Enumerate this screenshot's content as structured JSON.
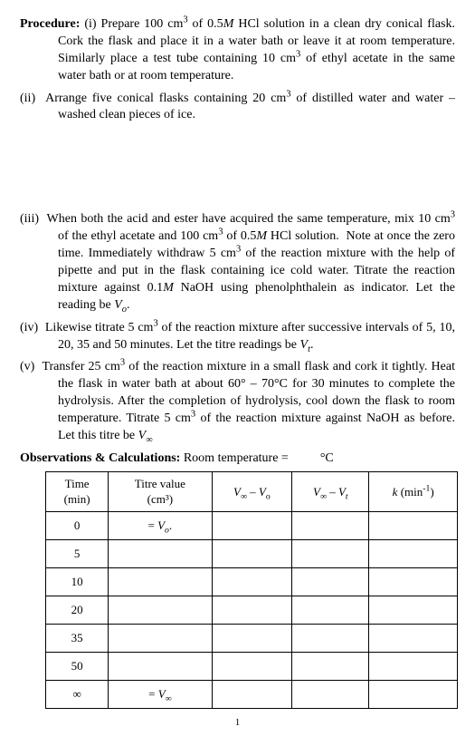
{
  "procedure": {
    "label": "Procedure:",
    "items": [
      {
        "num": "(i)",
        "text": "Prepare 100 cm³ of 0.5M HCl solution in a clean dry conical flask. Cork the flask and place it in a water bath or leave it at room temperature. Similarly place a test tube containing 10 cm³ of ethyl acetate in the same water bath or at room temperature."
      },
      {
        "num": "(ii)",
        "text": "Arrange five conical flasks containing 20 cm³ of distilled water and water –washed clean pieces of ice."
      },
      {
        "num": "(iii)",
        "text": "When both the acid and ester have acquired the same temperature, mix 10 cm³ of the ethyl acetate and 100 cm³ of 0.5M HCl solution.  Note at once the zero time. Immediately withdraw 5 cm³ of the reaction mixture with the help of pipette and put in the flask containing ice cold water. Titrate the reaction mixture against 0.1M NaOH using phenolphthalein as indicator. Let the reading be V₀."
      },
      {
        "num": "(iv)",
        "text": "Likewise titrate 5 cm³ of the reaction mixture after successive intervals of 5, 10, 20, 35 and 50 minutes. Let the titre readings be Vₜ."
      },
      {
        "num": "(v)",
        "text": "Transfer 25 cm³ of the reaction mixture in a small flask and cork it tightly. Heat the flask in water bath at about 60° – 70°C for 30 minutes to complete the hydrolysis. After the completion of hydrolysis, cool down the flask to room temperature. Titrate 5 cm³ of the reaction mixture against NaOH as before. Let this titre be V∞"
      }
    ]
  },
  "observations": {
    "label": "Observations & Calculations:",
    "roomtemp_prefix": "Room temperature =",
    "roomtemp_unit": "°C"
  },
  "table": {
    "headers": {
      "time": "Time (min)",
      "time_l1": "Time",
      "time_l2": "(min)",
      "titre_l1": "Titre value",
      "titre_l2": "(cm³)",
      "col3": "V∞ – V₀",
      "col4": "V∞ – Vₜ",
      "col5": "k (min⁻¹)"
    },
    "rows": [
      {
        "time": "0",
        "titre": "= V₀",
        "c3": "",
        "c4": "",
        "c5": ""
      },
      {
        "time": "5",
        "titre": "",
        "c3": "",
        "c4": "",
        "c5": ""
      },
      {
        "time": "10",
        "titre": "",
        "c3": "",
        "c4": "",
        "c5": ""
      },
      {
        "time": "20",
        "titre": "",
        "c3": "",
        "c4": "",
        "c5": ""
      },
      {
        "time": "35",
        "titre": "",
        "c3": "",
        "c4": "",
        "c5": ""
      },
      {
        "time": "50",
        "titre": "",
        "c3": "",
        "c4": "",
        "c5": ""
      },
      {
        "time": "∞",
        "titre": "= V∞",
        "c3": "",
        "c4": "",
        "c5": ""
      }
    ]
  },
  "footer_mark": "1"
}
